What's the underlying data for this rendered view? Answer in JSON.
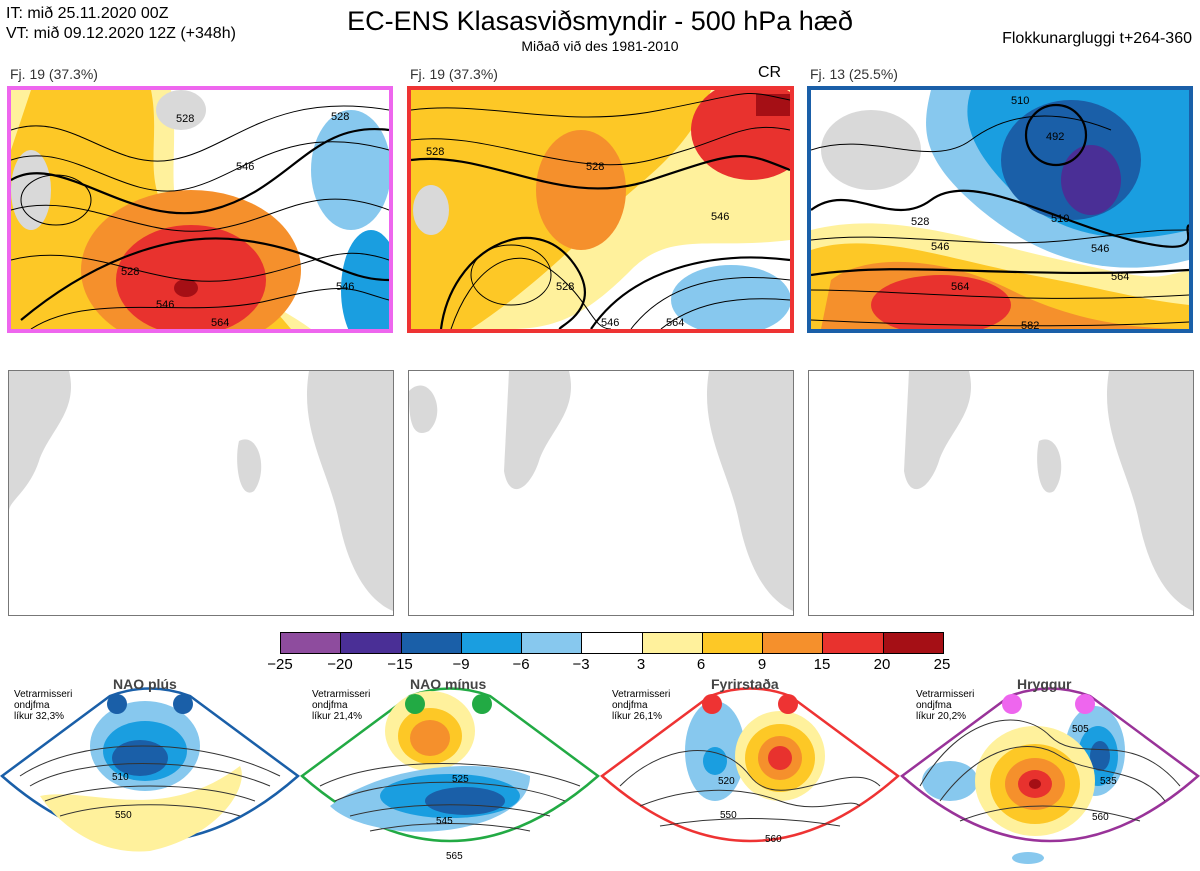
{
  "header": {
    "it_line": "IT: mið 25.11.2020 00Z",
    "vt_line": "VT: mið 09.12.2020 12Z  (+348h)",
    "title": "EC-ENS Klasasviðsmyndir - 500 hPa hæð",
    "subtitle": "Miðað við des 1981-2010",
    "window": "Flokkunargluggi t+264-360"
  },
  "panels": [
    {
      "title": "Fj. 19 (37.3%)",
      "tag": "",
      "border": "#ee66ee",
      "labels": [
        "528",
        "546",
        "528",
        "546",
        "528",
        "546",
        "564"
      ]
    },
    {
      "title": "Fj. 19 (37.3%)",
      "tag": "CR",
      "border": "#ee3333",
      "labels": [
        "528",
        "528",
        "546",
        "528",
        "546",
        "564"
      ]
    },
    {
      "title": "Fj. 13 (25.5%)",
      "tag": "",
      "border": "#1a5fa8",
      "labels": [
        "510",
        "492",
        "510",
        "528",
        "546",
        "564",
        "582",
        "546",
        "564"
      ]
    }
  ],
  "colorbar": {
    "colors": [
      "#8e4c9e",
      "#4a2f96",
      "#1a5fa8",
      "#1a9ee0",
      "#87c8ee",
      "#ffffff",
      "#fff19c",
      "#fdc826",
      "#f5902c",
      "#e8322e",
      "#a50f15"
    ],
    "ticks": [
      "−25",
      "−20",
      "−15",
      "−9",
      "−6",
      "−3",
      "3",
      "6",
      "9",
      "15",
      "20",
      "25"
    ]
  },
  "regimes": [
    {
      "name": "NAO plús",
      "note1": "Vetrarmisseri",
      "note2": "ondjfma",
      "note3": "líkur 32,3%",
      "color": "#1a5fa8",
      "contours": [
        "510",
        "550"
      ]
    },
    {
      "name": "NAO mínus",
      "note1": "Vetrarmisseri",
      "note2": "ondjfma",
      "note3": "líkur 21,4%",
      "color": "#22aa44",
      "contours": [
        "525",
        "545",
        "565"
      ]
    },
    {
      "name": "Fyrirstaða",
      "note1": "Vetrarmisseri",
      "note2": "ondjfma",
      "note3": "líkur 26,1%",
      "color": "#ee3333",
      "contours": [
        "520",
        "550",
        "560"
      ]
    },
    {
      "name": "Hryggur",
      "note1": "Vetrarmisseri",
      "note2": "ondjfma",
      "note3": "líkur 20,2%",
      "color": "#ee66ee",
      "contours": [
        "505",
        "535",
        "560"
      ]
    }
  ]
}
